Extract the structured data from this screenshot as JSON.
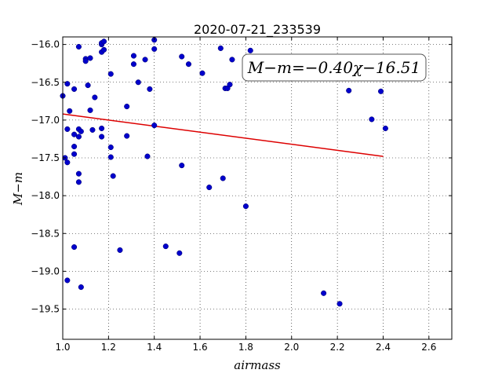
{
  "chart_data": {
    "type": "scatter",
    "title": "2020-07-21_233539",
    "xlabel": "airmass",
    "ylabel": "M−m",
    "xlim": [
      1.0,
      2.7
    ],
    "ylim": [
      -15.9,
      -19.9
    ],
    "y_inverted": true,
    "x_ticks": [
      1.0,
      1.2,
      1.4,
      1.6,
      1.8,
      2.0,
      2.2,
      2.4,
      2.6
    ],
    "x_tick_labels": [
      "1.0",
      "1.2",
      "1.4",
      "1.6",
      "1.8",
      "2.0",
      "2.2",
      "2.4",
      "2.6"
    ],
    "y_ticks": [
      -16.0,
      -16.5,
      -17.0,
      -17.5,
      -18.0,
      -18.5,
      -19.0,
      -19.5
    ],
    "y_tick_labels": [
      "−16.0",
      "−16.5",
      "−17.0",
      "−17.5",
      "−18.0",
      "−18.5",
      "−19.0",
      "−19.5"
    ],
    "grid": true,
    "point_color": "#0000cc",
    "line_color": "#dd0000",
    "points": [
      {
        "x": 1.0,
        "y": -16.68
      },
      {
        "x": 1.02,
        "y": -16.52
      },
      {
        "x": 1.03,
        "y": -16.88
      },
      {
        "x": 1.02,
        "y": -17.12
      },
      {
        "x": 1.01,
        "y": -17.5
      },
      {
        "x": 1.02,
        "y": -17.56
      },
      {
        "x": 1.05,
        "y": -17.45
      },
      {
        "x": 1.05,
        "y": -17.35
      },
      {
        "x": 1.05,
        "y": -17.19
      },
      {
        "x": 1.05,
        "y": -16.59
      },
      {
        "x": 1.07,
        "y": -16.03
      },
      {
        "x": 1.07,
        "y": -17.12
      },
      {
        "x": 1.08,
        "y": -17.15
      },
      {
        "x": 1.07,
        "y": -17.22
      },
      {
        "x": 1.07,
        "y": -17.71
      },
      {
        "x": 1.07,
        "y": -17.82
      },
      {
        "x": 1.05,
        "y": -18.68
      },
      {
        "x": 1.02,
        "y": -19.12
      },
      {
        "x": 1.08,
        "y": -19.21
      },
      {
        "x": 1.1,
        "y": -16.19
      },
      {
        "x": 1.1,
        "y": -16.22
      },
      {
        "x": 1.12,
        "y": -16.18
      },
      {
        "x": 1.11,
        "y": -16.54
      },
      {
        "x": 1.12,
        "y": -16.87
      },
      {
        "x": 1.13,
        "y": -17.13
      },
      {
        "x": 1.14,
        "y": -16.7
      },
      {
        "x": 1.17,
        "y": -16.0
      },
      {
        "x": 1.17,
        "y": -15.98
      },
      {
        "x": 1.18,
        "y": -15.96
      },
      {
        "x": 1.17,
        "y": -16.1
      },
      {
        "x": 1.18,
        "y": -16.07
      },
      {
        "x": 1.17,
        "y": -17.11
      },
      {
        "x": 1.17,
        "y": -17.22
      },
      {
        "x": 1.21,
        "y": -16.39
      },
      {
        "x": 1.21,
        "y": -17.36
      },
      {
        "x": 1.21,
        "y": -17.49
      },
      {
        "x": 1.22,
        "y": -17.74
      },
      {
        "x": 1.25,
        "y": -18.72
      },
      {
        "x": 1.28,
        "y": -16.82
      },
      {
        "x": 1.28,
        "y": -17.21
      },
      {
        "x": 1.31,
        "y": -16.15
      },
      {
        "x": 1.31,
        "y": -16.26
      },
      {
        "x": 1.33,
        "y": -16.5
      },
      {
        "x": 1.36,
        "y": -16.2
      },
      {
        "x": 1.38,
        "y": -16.59
      },
      {
        "x": 1.37,
        "y": -17.48
      },
      {
        "x": 1.4,
        "y": -15.94
      },
      {
        "x": 1.4,
        "y": -16.06
      },
      {
        "x": 1.4,
        "y": -17.07
      },
      {
        "x": 1.45,
        "y": -18.67
      },
      {
        "x": 1.51,
        "y": -18.76
      },
      {
        "x": 1.52,
        "y": -16.16
      },
      {
        "x": 1.55,
        "y": -16.26
      },
      {
        "x": 1.52,
        "y": -17.6
      },
      {
        "x": 1.61,
        "y": -16.38
      },
      {
        "x": 1.64,
        "y": -17.89
      },
      {
        "x": 1.69,
        "y": -16.05
      },
      {
        "x": 1.7,
        "y": -17.77
      },
      {
        "x": 1.71,
        "y": -16.58
      },
      {
        "x": 1.72,
        "y": -16.58
      },
      {
        "x": 1.73,
        "y": -16.53
      },
      {
        "x": 1.74,
        "y": -16.2
      },
      {
        "x": 1.8,
        "y": -18.14
      },
      {
        "x": 1.82,
        "y": -16.08
      },
      {
        "x": 2.14,
        "y": -19.29
      },
      {
        "x": 2.21,
        "y": -19.43
      },
      {
        "x": 2.25,
        "y": -16.61
      },
      {
        "x": 2.35,
        "y": -16.99
      },
      {
        "x": 2.39,
        "y": -16.62
      },
      {
        "x": 2.41,
        "y": -17.11
      }
    ],
    "fit_line": {
      "x": [
        1.0,
        2.4
      ],
      "y": [
        -16.92,
        -17.48
      ]
    },
    "annotation": "M−m=−0.40χ−16.51",
    "annotation_position": "top-right"
  }
}
